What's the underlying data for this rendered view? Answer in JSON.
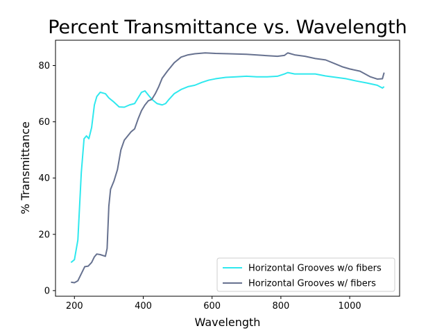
{
  "chart_data": {
    "type": "line",
    "title": "Percent Transmittance vs. Wavelength",
    "xlabel": "Wavelength",
    "ylabel": "% Transmittance",
    "xlim": [
      145,
      1145
    ],
    "ylim": [
      -2,
      89
    ],
    "x_ticks": [
      200,
      400,
      600,
      800,
      1000
    ],
    "y_ticks": [
      0,
      20,
      40,
      60,
      80
    ],
    "grid": false,
    "legend_position": "lower-right",
    "series": [
      {
        "name": "Horizontal Grooves w/o fibers",
        "color": "#2ee8ee",
        "points": [
          [
            190,
            10
          ],
          [
            200,
            11
          ],
          [
            210,
            18
          ],
          [
            220,
            42
          ],
          [
            228,
            54
          ],
          [
            235,
            55
          ],
          [
            242,
            54
          ],
          [
            250,
            58
          ],
          [
            258,
            66
          ],
          [
            265,
            69
          ],
          [
            275,
            70.5
          ],
          [
            290,
            70
          ],
          [
            300,
            68.5
          ],
          [
            315,
            67
          ],
          [
            330,
            65.3
          ],
          [
            345,
            65.2
          ],
          [
            360,
            66
          ],
          [
            375,
            66.5
          ],
          [
            385,
            68.5
          ],
          [
            395,
            70.5
          ],
          [
            405,
            71
          ],
          [
            415,
            69.5
          ],
          [
            425,
            68
          ],
          [
            440,
            66.5
          ],
          [
            455,
            66
          ],
          [
            465,
            66.5
          ],
          [
            475,
            68
          ],
          [
            490,
            70
          ],
          [
            510,
            71.5
          ],
          [
            530,
            72.5
          ],
          [
            550,
            73
          ],
          [
            570,
            74
          ],
          [
            590,
            74.8
          ],
          [
            610,
            75.3
          ],
          [
            640,
            75.8
          ],
          [
            670,
            76
          ],
          [
            700,
            76.2
          ],
          [
            730,
            76
          ],
          [
            760,
            76
          ],
          [
            790,
            76.2
          ],
          [
            810,
            77
          ],
          [
            820,
            77.5
          ],
          [
            840,
            77
          ],
          [
            870,
            77
          ],
          [
            900,
            77
          ],
          [
            930,
            76.3
          ],
          [
            960,
            75.8
          ],
          [
            990,
            75.3
          ],
          [
            1020,
            74.5
          ],
          [
            1050,
            73.8
          ],
          [
            1080,
            73
          ],
          [
            1095,
            72
          ],
          [
            1100,
            72.5
          ]
        ]
      },
      {
        "name": "Horizontal Grooves w/ fibers",
        "color": "#66718f",
        "points": [
          [
            190,
            3
          ],
          [
            200,
            2.8
          ],
          [
            210,
            3.5
          ],
          [
            220,
            6
          ],
          [
            230,
            8.5
          ],
          [
            240,
            8.7
          ],
          [
            250,
            10
          ],
          [
            258,
            12
          ],
          [
            265,
            13
          ],
          [
            275,
            12.8
          ],
          [
            290,
            12.2
          ],
          [
            295,
            15
          ],
          [
            300,
            30
          ],
          [
            305,
            36
          ],
          [
            315,
            39
          ],
          [
            325,
            43
          ],
          [
            335,
            50
          ],
          [
            345,
            53.5
          ],
          [
            355,
            55
          ],
          [
            365,
            56.5
          ],
          [
            375,
            57.5
          ],
          [
            385,
            61
          ],
          [
            395,
            64
          ],
          [
            405,
            66
          ],
          [
            415,
            67.5
          ],
          [
            425,
            68
          ],
          [
            435,
            70
          ],
          [
            445,
            72.5
          ],
          [
            455,
            75.5
          ],
          [
            470,
            78
          ],
          [
            490,
            81
          ],
          [
            510,
            83
          ],
          [
            530,
            83.8
          ],
          [
            550,
            84.2
          ],
          [
            580,
            84.5
          ],
          [
            610,
            84.3
          ],
          [
            650,
            84.2
          ],
          [
            700,
            84
          ],
          [
            750,
            83.6
          ],
          [
            790,
            83.3
          ],
          [
            810,
            83.6
          ],
          [
            820,
            84.5
          ],
          [
            840,
            83.8
          ],
          [
            870,
            83.3
          ],
          [
            900,
            82.5
          ],
          [
            930,
            82
          ],
          [
            960,
            80.5
          ],
          [
            980,
            79.5
          ],
          [
            1000,
            78.8
          ],
          [
            1030,
            78
          ],
          [
            1060,
            76
          ],
          [
            1080,
            75.2
          ],
          [
            1095,
            75.3
          ],
          [
            1100,
            77.5
          ]
        ]
      }
    ]
  }
}
